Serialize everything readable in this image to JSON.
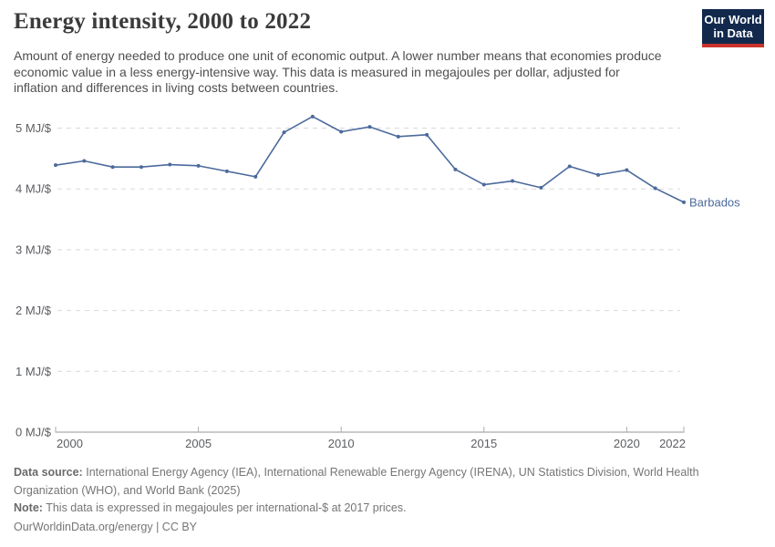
{
  "header": {
    "title": "Energy intensity, 2000 to 2022",
    "subtitle": "Amount of energy needed to produce one unit of economic output. A lower number means that economies produce economic value in a less energy-intensive way. This data is measured in megajoules per dollar, adjusted for inflation and differences in living costs between countries.",
    "logo": {
      "line1": "Our World",
      "line2": "in Data",
      "bg_color": "#12294d",
      "accent_color": "#c9332a"
    }
  },
  "chart_data": {
    "type": "line",
    "title": "Energy intensity, 2000 to 2022",
    "xlabel": "",
    "ylabel": "MJ/$",
    "x_range": [
      2000,
      2022
    ],
    "ylim": [
      0,
      5.5
    ],
    "grid": "horizontal-dashed",
    "legend_position": "end-of-line",
    "x_ticks": [
      2000,
      2005,
      2010,
      2015,
      2020,
      2022
    ],
    "y_ticks": [
      {
        "value": 0,
        "label": "0 MJ/$"
      },
      {
        "value": 1,
        "label": "1 MJ/$"
      },
      {
        "value": 2,
        "label": "2 MJ/$"
      },
      {
        "value": 3,
        "label": "3 MJ/$"
      },
      {
        "value": 4,
        "label": "4 MJ/$"
      },
      {
        "value": 5,
        "label": "5 MJ/$"
      }
    ],
    "series": [
      {
        "name": "Barbados",
        "color": "#4c6a9c",
        "x": [
          2000,
          2001,
          2002,
          2003,
          2004,
          2005,
          2006,
          2007,
          2008,
          2009,
          2010,
          2011,
          2012,
          2013,
          2014,
          2015,
          2016,
          2017,
          2018,
          2019,
          2020,
          2021,
          2022
        ],
        "values": [
          4.39,
          4.46,
          4.36,
          4.36,
          4.4,
          4.38,
          4.29,
          4.2,
          4.93,
          5.19,
          4.94,
          5.02,
          4.86,
          4.89,
          4.32,
          4.07,
          4.13,
          4.02,
          4.37,
          4.23,
          4.31,
          4.01,
          3.78
        ]
      }
    ]
  },
  "footer": {
    "data_source_label": "Data source:",
    "data_source": "International Energy Agency (IEA), International Renewable Energy Agency (IRENA), UN Statistics Division, World Health Organization (WHO), and World Bank (2025)",
    "note_label": "Note:",
    "note": "This data is expressed in megajoules per international-$ at 2017 prices.",
    "license": "OurWorldinData.org/energy | CC BY"
  }
}
